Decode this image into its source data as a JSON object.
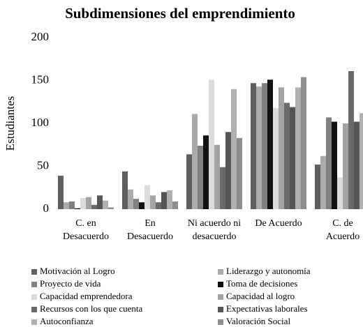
{
  "chart_data": {
    "type": "bar",
    "title": "Subdimensiones del emprendimiento",
    "y_label": "Estudiantes",
    "categories": [
      [
        "C. en",
        "Desacuerdo"
      ],
      [
        "En",
        "Desacuerdo"
      ],
      [
        "Ni acuerdo ni",
        "desacuerdo"
      ],
      [
        "De Acuerdo"
      ],
      [
        "C. de",
        "Acuerdo"
      ]
    ],
    "series": [
      {
        "name": "Motivación al Logro",
        "color": "#5f5f5f",
        "values": [
          39,
          44,
          64,
          147,
          52
        ]
      },
      {
        "name": "Liderazgo y autonomía",
        "color": "#ababab",
        "values": [
          8,
          23,
          111,
          143,
          62
        ]
      },
      {
        "name": "Proyecto de vida",
        "color": "#808080",
        "values": [
          9,
          12,
          74,
          147,
          107
        ]
      },
      {
        "name": "Toma de decisiones",
        "color": "#111111",
        "values": [
          1,
          8,
          86,
          151,
          102
        ]
      },
      {
        "name": "Capacidad emprendedora",
        "color": "#dcdcdc",
        "values": [
          13,
          28,
          151,
          118,
          37
        ]
      },
      {
        "name": "Capacidad al logro",
        "color": "#a3a3a3",
        "values": [
          14,
          16,
          75,
          142,
          100
        ]
      },
      {
        "name": "Recursos con los que cuenta",
        "color": "#6a6a6a",
        "values": [
          5,
          8,
          49,
          124,
          161
        ]
      },
      {
        "name": "Expectativas laborales",
        "color": "#555555",
        "values": [
          16,
          20,
          90,
          119,
          102
        ]
      },
      {
        "name": "Autoconfianza",
        "color": "#b0b0b0",
        "values": [
          10,
          22,
          140,
          142,
          112
        ]
      },
      {
        "name": "Valoración Social",
        "color": "#8e8e8e",
        "values": [
          2,
          9,
          83,
          154,
          99
        ]
      }
    ],
    "ylim": [
      0,
      200
    ],
    "yticks": [
      0,
      50,
      100,
      150,
      200
    ],
    "grid": false
  }
}
